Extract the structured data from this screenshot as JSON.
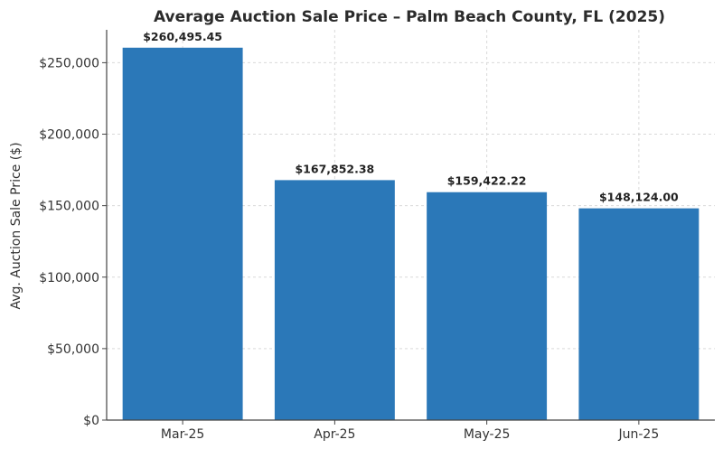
{
  "chart_data": {
    "type": "bar",
    "title": "Average Auction Sale Price – Palm Beach County, FL (2025)",
    "xlabel": "",
    "ylabel": "Avg. Auction Sale Price ($)",
    "categories": [
      "Mar-25",
      "Apr-25",
      "May-25",
      "Jun-25"
    ],
    "values": [
      260495.45,
      167852.38,
      159422.22,
      148124.0
    ],
    "data_labels": [
      "$260,495.45",
      "$167,852.38",
      "$159,422.22",
      "$148,124.00"
    ],
    "ylim": [
      0,
      273000
    ],
    "yticks": [
      0,
      50000,
      100000,
      150000,
      200000,
      250000
    ],
    "ytick_labels": [
      "$0",
      "$50,000",
      "$100,000",
      "$150,000",
      "$200,000",
      "$250,000"
    ],
    "grid": true,
    "bar_color": "#2b78b8"
  }
}
